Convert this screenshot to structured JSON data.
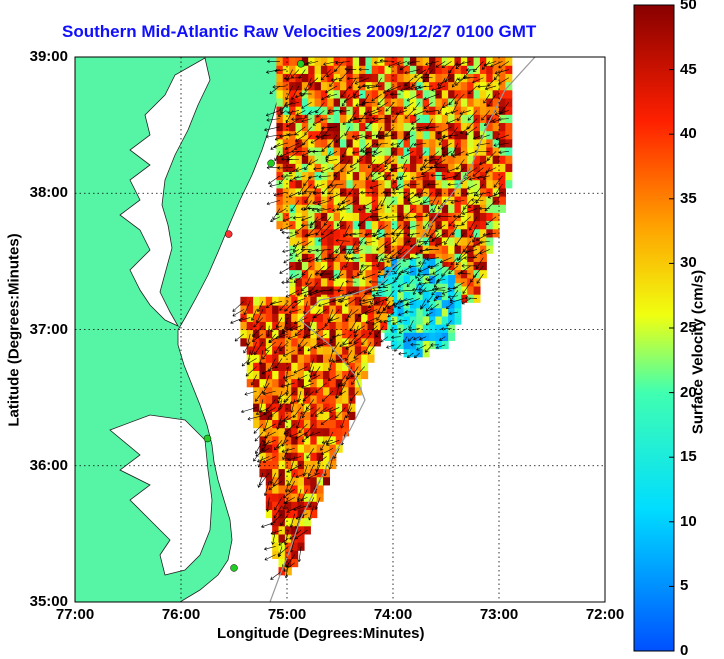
{
  "title": "Southern Mid-Atlantic Raw Velocities 2009/12/27 0100 GMT",
  "chart_data": {
    "type": "map",
    "title": "Southern Mid-Atlantic Raw Velocities 2009/12/27 0100 GMT",
    "xlabel": "Longitude (Degrees:Minutes)",
    "ylabel": "Latitude (Degrees:Minutes)",
    "xlim": [
      -77,
      -72
    ],
    "ylim": [
      35,
      39
    ],
    "x_ticks": [
      -77,
      -76,
      -75,
      -74,
      -73,
      -72
    ],
    "x_tick_labels": [
      "77:00",
      "76:00",
      "75:00",
      "74:00",
      "73:00",
      "72:00"
    ],
    "y_ticks": [
      35,
      36,
      37,
      38,
      39
    ],
    "y_tick_labels": [
      "35:00",
      "36:00",
      "37:00",
      "38:00",
      "39:00"
    ],
    "grid": "dotted",
    "colorbar": {
      "label": "Surface Velocity (cm/s)",
      "range": [
        0,
        50
      ],
      "ticks": [
        0,
        5,
        10,
        15,
        20,
        25,
        30,
        35,
        40,
        45,
        50
      ],
      "tick_labels": [
        "0",
        "5",
        "10",
        "15",
        "20",
        "25",
        "30",
        "35",
        "40",
        "45",
        "50"
      ],
      "colormap": "jet"
    },
    "colors": {
      "land": "#55f5a5",
      "water": "#ffffff",
      "title": "#1010ff"
    },
    "stations": [
      {
        "lon": -74.87,
        "lat": 38.95,
        "color": "#22cc22"
      },
      {
        "lon": -75.15,
        "lat": 38.22,
        "color": "#22cc22"
      },
      {
        "lon": -75.55,
        "lat": 37.7,
        "color": "#ff3030"
      },
      {
        "lon": -75.75,
        "lat": 36.2,
        "color": "#22cc22"
      },
      {
        "lon": -75.5,
        "lat": 35.25,
        "color": "#22cc22"
      }
    ],
    "velocity_regions": [
      {
        "name": "northern-field",
        "lon": [
          -75.1,
          -72.9
        ],
        "lat": [
          37.2,
          39.0
        ],
        "speed_range": [
          20,
          50
        ]
      },
      {
        "name": "central-slow-eddy",
        "lon": [
          -74.2,
          -73.4
        ],
        "lat": [
          36.8,
          37.5
        ],
        "speed_range": [
          5,
          25
        ]
      },
      {
        "name": "southern-field",
        "lon": [
          -75.5,
          -74.0
        ],
        "lat": [
          35.2,
          37.2
        ],
        "speed_range": [
          25,
          50
        ]
      }
    ]
  }
}
